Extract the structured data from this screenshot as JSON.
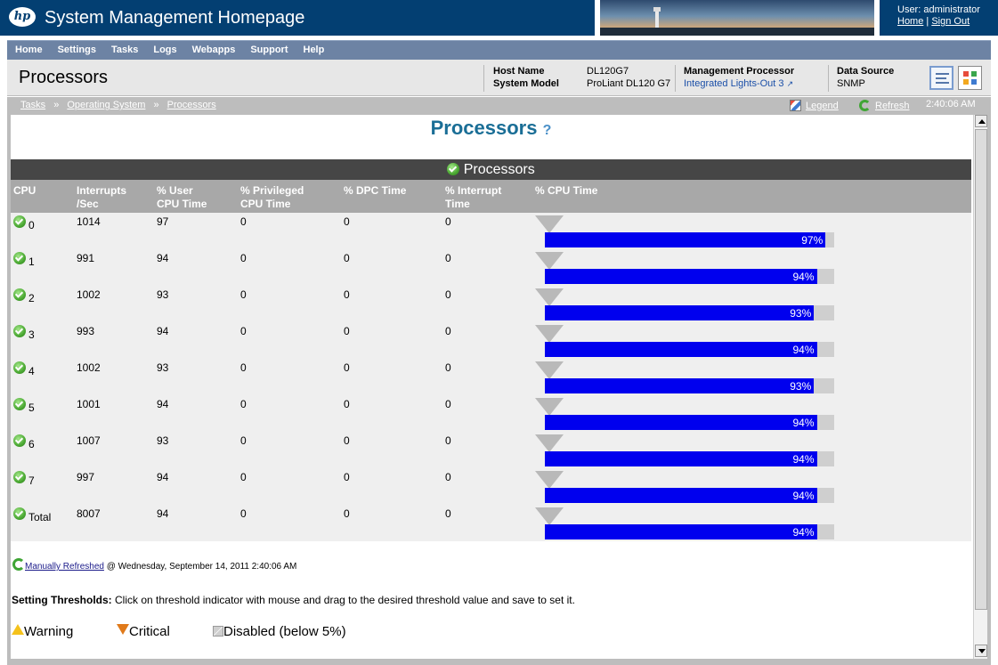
{
  "header": {
    "logo_text": "hp",
    "title": "System Management Homepage",
    "user_label": "User: administrator",
    "home_link": "Home",
    "link_separator": "|",
    "sign_out_link": "Sign Out"
  },
  "nav": {
    "items": [
      "Home",
      "Settings",
      "Tasks",
      "Logs",
      "Webapps",
      "Support",
      "Help"
    ]
  },
  "page": {
    "heading": "Processors",
    "host_name_label": "Host Name",
    "host_name": "DL120G7",
    "system_model_label": "System Model",
    "system_model": "ProLiant DL120 G7",
    "mgmt_processor_label": "Management Processor",
    "mgmt_processor_link": "Integrated Lights-Out 3",
    "data_source_label": "Data Source",
    "data_source": "SNMP"
  },
  "breadcrumb": {
    "items": [
      "Tasks",
      "Operating System",
      "Processors"
    ],
    "separator": "»",
    "legend_link": "Legend",
    "refresh_link": "Refresh",
    "time": "2:40:06 AM"
  },
  "main": {
    "title": "Processors",
    "help_glyph": "?",
    "table_title": "Processors",
    "columns": {
      "cpu": "CPU",
      "interrupts_1": "Interrupts",
      "interrupts_2": "/Sec",
      "user_1": "% User",
      "user_2": "CPU Time",
      "priv_1": "% Privileged",
      "priv_2": "CPU Time",
      "dpc": "% DPC Time",
      "interrupt_1": "% Interrupt",
      "interrupt_2": "Time",
      "cpu_time": "% CPU Time"
    },
    "rows": [
      {
        "cpu": "0",
        "interrupts": "1014",
        "user": "97",
        "privileged": "0",
        "dpc": "0",
        "interrupt": "0",
        "cpu_pct": 97,
        "cpu_label": "97%"
      },
      {
        "cpu": "1",
        "interrupts": "991",
        "user": "94",
        "privileged": "0",
        "dpc": "0",
        "interrupt": "0",
        "cpu_pct": 94,
        "cpu_label": "94%"
      },
      {
        "cpu": "2",
        "interrupts": "1002",
        "user": "93",
        "privileged": "0",
        "dpc": "0",
        "interrupt": "0",
        "cpu_pct": 93,
        "cpu_label": "93%"
      },
      {
        "cpu": "3",
        "interrupts": "993",
        "user": "94",
        "privileged": "0",
        "dpc": "0",
        "interrupt": "0",
        "cpu_pct": 94,
        "cpu_label": "94%"
      },
      {
        "cpu": "4",
        "interrupts": "1002",
        "user": "93",
        "privileged": "0",
        "dpc": "0",
        "interrupt": "0",
        "cpu_pct": 93,
        "cpu_label": "93%"
      },
      {
        "cpu": "5",
        "interrupts": "1001",
        "user": "94",
        "privileged": "0",
        "dpc": "0",
        "interrupt": "0",
        "cpu_pct": 94,
        "cpu_label": "94%"
      },
      {
        "cpu": "6",
        "interrupts": "1007",
        "user": "93",
        "privileged": "0",
        "dpc": "0",
        "interrupt": "0",
        "cpu_pct": 94,
        "cpu_label": "94%"
      },
      {
        "cpu": "7",
        "interrupts": "997",
        "user": "94",
        "privileged": "0",
        "dpc": "0",
        "interrupt": "0",
        "cpu_pct": 94,
        "cpu_label": "94%"
      },
      {
        "cpu": "Total",
        "interrupts": "8007",
        "user": "94",
        "privileged": "0",
        "dpc": "0",
        "interrupt": "0",
        "cpu_pct": 94,
        "cpu_label": "94%"
      }
    ],
    "refresh_link": "Manually Refreshed",
    "refresh_time": "@ Wednesday, September 14, 2011 2:40:06 AM",
    "thresholds_label": "Setting Thresholds:",
    "thresholds_text": "Click on threshold indicator with mouse and drag to the desired threshold value and save to set it.",
    "legend": {
      "warning": "Warning",
      "critical": "Critical",
      "disabled": "Disabled (below 5%)"
    }
  },
  "colors": {
    "brand_blue": "#033f72",
    "nav_blue": "#6d83a4",
    "title_blue": "#1a6e96",
    "bar_fill": "#0000ee",
    "bar_track": "#cfcfcf",
    "table_titlebar": "#464646",
    "column_header": "#a8a8a8",
    "status_ok": "#4aa832"
  },
  "icons": {
    "status": "ok-check-icon",
    "threshold": "threshold-triangle-icon",
    "refresh": "refresh-icon",
    "legend": "legend-icon",
    "help": "help-icon",
    "warning": "warning-icon",
    "critical": "critical-icon",
    "disabled": "disabled-icon"
  }
}
